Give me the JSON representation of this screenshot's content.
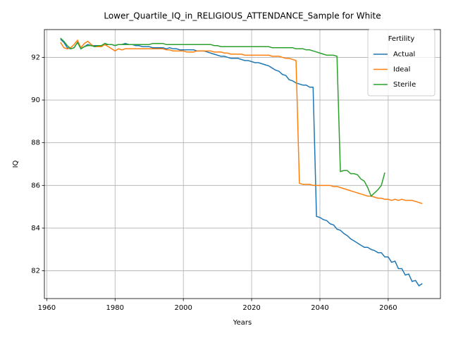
{
  "chart_data": {
    "type": "line",
    "title": "Lower_Quartile_IQ_in_RELIGIOUS_ATTENDANCE_Sample for White",
    "xlabel": "Years",
    "ylabel": "IQ",
    "x": [
      1964,
      1965,
      1966,
      1967,
      1968,
      1969,
      1970,
      1971,
      1972,
      1973,
      1974,
      1975,
      1976,
      1977,
      1978,
      1979,
      1980,
      1981,
      1982,
      1983,
      1984,
      1985,
      1986,
      1987,
      1988,
      1989,
      1990,
      1991,
      1992,
      1993,
      1994,
      1995,
      1996,
      1997,
      1998,
      1999,
      2000,
      2001,
      2002,
      2003,
      2004,
      2005,
      2006,
      2007,
      2008,
      2009,
      2010,
      2011,
      2012,
      2013,
      2014,
      2015,
      2016,
      2017,
      2018,
      2019,
      2020,
      2021,
      2022,
      2023,
      2024,
      2025,
      2026,
      2027,
      2028,
      2029,
      2030,
      2031,
      2032,
      2033,
      2034,
      2035,
      2036,
      2037,
      2038,
      2039,
      2040,
      2041,
      2042,
      2043,
      2044,
      2045,
      2046,
      2047,
      2048,
      2049,
      2050,
      2051,
      2052,
      2053,
      2054,
      2055,
      2056,
      2057,
      2058,
      2059,
      2060,
      2061,
      2062,
      2063,
      2064,
      2065,
      2066,
      2067,
      2068,
      2069,
      2070
    ],
    "series": [
      {
        "name": "Actual",
        "color": "#1f77b4",
        "values": [
          92.85,
          92.7,
          92.45,
          92.4,
          92.45,
          92.7,
          92.4,
          92.5,
          92.6,
          92.55,
          92.55,
          92.55,
          92.55,
          92.6,
          92.6,
          92.6,
          92.55,
          92.6,
          92.6,
          92.65,
          92.6,
          92.6,
          92.55,
          92.55,
          92.5,
          92.5,
          92.5,
          92.45,
          92.45,
          92.45,
          92.45,
          92.4,
          92.45,
          92.4,
          92.4,
          92.35,
          92.35,
          92.35,
          92.35,
          92.35,
          92.3,
          92.3,
          92.3,
          92.25,
          92.2,
          92.15,
          92.1,
          92.05,
          92.05,
          92.0,
          91.95,
          91.95,
          91.95,
          91.9,
          91.85,
          91.85,
          91.8,
          91.75,
          91.75,
          91.7,
          91.65,
          91.6,
          91.5,
          91.4,
          91.35,
          91.2,
          91.15,
          90.95,
          90.9,
          90.8,
          90.75,
          90.7,
          90.7,
          90.6,
          90.6,
          84.55,
          84.5,
          84.4,
          84.35,
          84.2,
          84.15,
          83.95,
          83.9,
          83.75,
          83.65,
          83.5,
          83.4,
          83.3,
          83.2,
          83.1,
          83.1,
          83.0,
          82.95,
          82.85,
          82.85,
          82.65,
          82.65,
          82.4,
          82.45,
          82.1,
          82.1,
          81.8,
          81.85,
          81.5,
          81.55,
          81.3,
          81.4
        ]
      },
      {
        "name": "Ideal",
        "color": "#ff7f0e",
        "values": [
          92.7,
          92.45,
          92.4,
          92.45,
          92.6,
          92.8,
          92.45,
          92.65,
          92.75,
          92.6,
          92.5,
          92.5,
          92.5,
          92.6,
          92.5,
          92.4,
          92.3,
          92.4,
          92.35,
          92.4,
          92.4,
          92.4,
          92.4,
          92.4,
          92.4,
          92.4,
          92.4,
          92.4,
          92.4,
          92.4,
          92.4,
          92.35,
          92.35,
          92.3,
          92.3,
          92.3,
          92.3,
          92.25,
          92.25,
          92.25,
          92.3,
          92.3,
          92.3,
          92.3,
          92.3,
          92.25,
          92.25,
          92.25,
          92.2,
          92.2,
          92.15,
          92.15,
          92.15,
          92.15,
          92.1,
          92.1,
          92.1,
          92.1,
          92.1,
          92.1,
          92.1,
          92.1,
          92.05,
          92.05,
          92.05,
          92.0,
          91.95,
          91.95,
          91.9,
          91.85,
          86.1,
          86.05,
          86.05,
          86.05,
          86.0,
          86.0,
          86.0,
          86.0,
          86.0,
          86.0,
          85.95,
          85.95,
          85.9,
          85.85,
          85.8,
          85.75,
          85.7,
          85.65,
          85.6,
          85.55,
          85.5,
          85.5,
          85.45,
          85.4,
          85.4,
          85.35,
          85.35,
          85.3,
          85.35,
          85.3,
          85.35,
          85.3,
          85.3,
          85.3,
          85.25,
          85.2,
          85.15
        ]
      },
      {
        "name": "Sterile",
        "color": "#2ca02c",
        "values": [
          92.9,
          92.75,
          92.55,
          92.4,
          92.45,
          92.7,
          92.4,
          92.5,
          92.55,
          92.55,
          92.5,
          92.55,
          92.55,
          92.65,
          92.6,
          92.6,
          92.55,
          92.6,
          92.6,
          92.6,
          92.6,
          92.6,
          92.6,
          92.6,
          92.6,
          92.6,
          92.6,
          92.65,
          92.65,
          92.65,
          92.65,
          92.6,
          92.6,
          92.6,
          92.6,
          92.6,
          92.6,
          92.6,
          92.6,
          92.6,
          92.6,
          92.6,
          92.6,
          92.6,
          92.6,
          92.55,
          92.55,
          92.5,
          92.5,
          92.5,
          92.5,
          92.5,
          92.5,
          92.5,
          92.5,
          92.5,
          92.5,
          92.5,
          92.5,
          92.5,
          92.5,
          92.5,
          92.45,
          92.45,
          92.45,
          92.45,
          92.45,
          92.45,
          92.45,
          92.4,
          92.4,
          92.4,
          92.35,
          92.35,
          92.3,
          92.25,
          92.2,
          92.15,
          92.1,
          92.1,
          92.1,
          92.05,
          86.65,
          86.7,
          86.7,
          86.55,
          86.55,
          86.5,
          86.3,
          86.2,
          85.9,
          85.5,
          85.65,
          85.8,
          86.0,
          86.6,
          null,
          null,
          null,
          null,
          null,
          null,
          null,
          null,
          null,
          null,
          null
        ]
      }
    ],
    "xlim": [
      1959.3,
      2075.3
    ],
    "ylim": [
      80.7,
      93.3
    ],
    "xticks": [
      1960,
      1980,
      2000,
      2020,
      2040,
      2060
    ],
    "yticks": [
      82,
      84,
      86,
      88,
      90,
      92
    ],
    "grid": true,
    "legend_title": "Fertility",
    "legend_position": "upper right"
  }
}
